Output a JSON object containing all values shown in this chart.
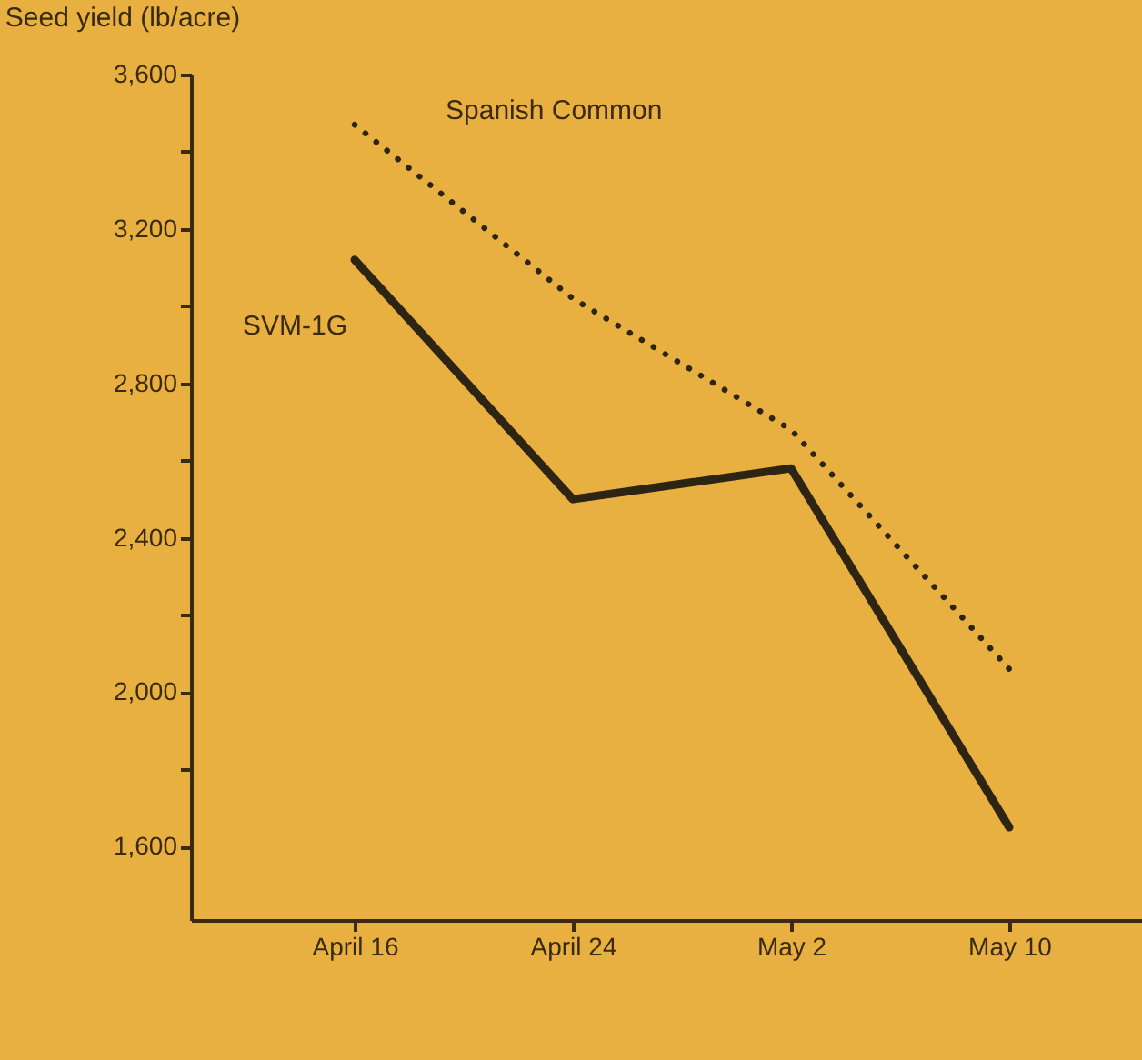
{
  "chart_data": {
    "type": "line",
    "ylabel": "Seed yield (lb/acre)",
    "categories": [
      "April 16",
      "April 24",
      "May 2",
      "May 10"
    ],
    "series": [
      {
        "name": "Spanish Common",
        "color": "#2e2414",
        "line_style": "dotted",
        "values": [
          3470,
          3020,
          2680,
          2060
        ]
      },
      {
        "name": "SVM-1G",
        "color": "#2e2414",
        "line_style": "solid",
        "values": [
          3120,
          2500,
          2580,
          1650
        ]
      }
    ],
    "ylim": [
      1410,
      3600
    ],
    "yticks": [
      {
        "value": 1600,
        "label": "1,600"
      },
      {
        "value": 1800,
        "label": null
      },
      {
        "value": 2000,
        "label": "2,000"
      },
      {
        "value": 2200,
        "label": null
      },
      {
        "value": 2400,
        "label": "2,400"
      },
      {
        "value": 2600,
        "label": null
      },
      {
        "value": 2800,
        "label": "2,800"
      },
      {
        "value": 3000,
        "label": null
      },
      {
        "value": 3200,
        "label": "3,200"
      },
      {
        "value": 3400,
        "label": null
      },
      {
        "value": 3600,
        "label": "3,600"
      }
    ],
    "grid": false,
    "legend": false,
    "marker": "none"
  }
}
